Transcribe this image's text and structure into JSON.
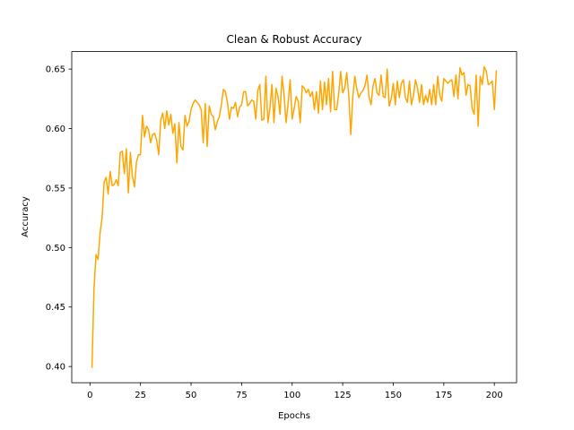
{
  "chart_data": {
    "type": "line",
    "title": "Clean & Robust Accuracy",
    "xlabel": "Epochs",
    "ylabel": "Accuracy",
    "x": [
      1,
      2,
      3,
      4,
      5,
      6,
      7,
      8,
      9,
      10,
      11,
      12,
      13,
      14,
      15,
      16,
      17,
      18,
      19,
      20,
      21,
      22,
      23,
      24,
      25,
      26,
      27,
      28,
      29,
      30,
      31,
      32,
      33,
      34,
      35,
      36,
      37,
      38,
      39,
      40,
      41,
      42,
      43,
      44,
      45,
      46,
      47,
      48,
      49,
      50,
      51,
      52,
      53,
      54,
      55,
      56,
      57,
      58,
      59,
      60,
      61,
      62,
      63,
      64,
      65,
      66,
      67,
      68,
      69,
      70,
      71,
      72,
      73,
      74,
      75,
      76,
      77,
      78,
      79,
      80,
      81,
      82,
      83,
      84,
      85,
      86,
      87,
      88,
      89,
      90,
      91,
      92,
      93,
      94,
      95,
      96,
      97,
      98,
      99,
      100,
      101,
      102,
      103,
      104,
      105,
      106,
      107,
      108,
      109,
      110,
      111,
      112,
      113,
      114,
      115,
      116,
      117,
      118,
      119,
      120,
      121,
      122,
      123,
      124,
      125,
      126,
      127,
      128,
      129,
      130,
      131,
      132,
      133,
      134,
      135,
      136,
      137,
      138,
      139,
      140,
      141,
      142,
      143,
      144,
      145,
      146,
      147,
      148,
      149,
      150,
      151,
      152,
      153,
      154,
      155,
      156,
      157,
      158,
      159,
      160,
      161,
      162,
      163,
      164,
      165,
      166,
      167,
      168,
      169,
      170,
      171,
      172,
      173,
      174,
      175,
      176,
      177,
      178,
      179,
      180,
      181,
      182,
      183,
      184,
      185,
      186,
      187,
      188,
      189,
      190,
      191,
      192,
      193,
      194,
      195,
      196,
      197,
      198,
      199,
      200,
      201
    ],
    "series": [
      {
        "color": "#ffa500",
        "values": [
          0.399,
          0.465,
          0.494,
          0.49,
          0.512,
          0.525,
          0.555,
          0.559,
          0.545,
          0.564,
          0.552,
          0.553,
          0.557,
          0.552,
          0.58,
          0.581,
          0.562,
          0.583,
          0.546,
          0.58,
          0.56,
          0.551,
          0.572,
          0.578,
          0.578,
          0.611,
          0.593,
          0.602,
          0.599,
          0.588,
          0.595,
          0.596,
          0.59,
          0.578,
          0.607,
          0.613,
          0.6,
          0.615,
          0.603,
          0.612,
          0.596,
          0.604,
          0.571,
          0.605,
          0.585,
          0.582,
          0.611,
          0.602,
          0.606,
          0.616,
          0.621,
          0.624,
          0.622,
          0.62,
          0.616,
          0.588,
          0.621,
          0.585,
          0.619,
          0.612,
          0.61,
          0.599,
          0.606,
          0.61,
          0.62,
          0.633,
          0.631,
          0.622,
          0.608,
          0.618,
          0.617,
          0.622,
          0.61,
          0.618,
          0.62,
          0.631,
          0.631,
          0.619,
          0.621,
          0.624,
          0.623,
          0.608,
          0.632,
          0.637,
          0.607,
          0.608,
          0.644,
          0.605,
          0.617,
          0.637,
          0.605,
          0.634,
          0.627,
          0.612,
          0.644,
          0.628,
          0.605,
          0.621,
          0.641,
          0.608,
          0.617,
          0.627,
          0.623,
          0.605,
          0.636,
          0.634,
          0.63,
          0.633,
          0.627,
          0.631,
          0.616,
          0.631,
          0.613,
          0.64,
          0.616,
          0.639,
          0.62,
          0.642,
          0.614,
          0.648,
          0.616,
          0.616,
          0.629,
          0.648,
          0.63,
          0.634,
          0.647,
          0.628,
          0.595,
          0.627,
          0.644,
          0.633,
          0.626,
          0.63,
          0.632,
          0.636,
          0.645,
          0.627,
          0.62,
          0.636,
          0.642,
          0.63,
          0.628,
          0.645,
          0.627,
          0.626,
          0.65,
          0.619,
          0.625,
          0.638,
          0.62,
          0.64,
          0.626,
          0.638,
          0.641,
          0.626,
          0.622,
          0.64,
          0.62,
          0.628,
          0.641,
          0.634,
          0.622,
          0.637,
          0.62,
          0.628,
          0.622,
          0.633,
          0.62,
          0.637,
          0.62,
          0.644,
          0.628,
          0.623,
          0.642,
          0.64,
          0.638,
          0.64,
          0.641,
          0.627,
          0.645,
          0.625,
          0.651,
          0.645,
          0.647,
          0.628,
          0.637,
          0.636,
          0.617,
          0.612,
          0.645,
          0.602,
          0.644,
          0.637,
          0.652,
          0.648,
          0.637,
          0.638,
          0.64,
          0.616,
          0.649
        ]
      }
    ],
    "xlim": [
      -9,
      211
    ],
    "ylim": [
      0.3864,
      0.6647
    ],
    "xticks": [
      0,
      25,
      50,
      75,
      100,
      125,
      150,
      175,
      200
    ],
    "yticks": [
      {
        "value": 0.4,
        "label": "0.40"
      },
      0.45,
      {
        "value": 0.5,
        "label": "0.50"
      },
      0.55,
      {
        "value": 0.6,
        "label": "0.60"
      },
      0.65
    ],
    "grid": false
  }
}
